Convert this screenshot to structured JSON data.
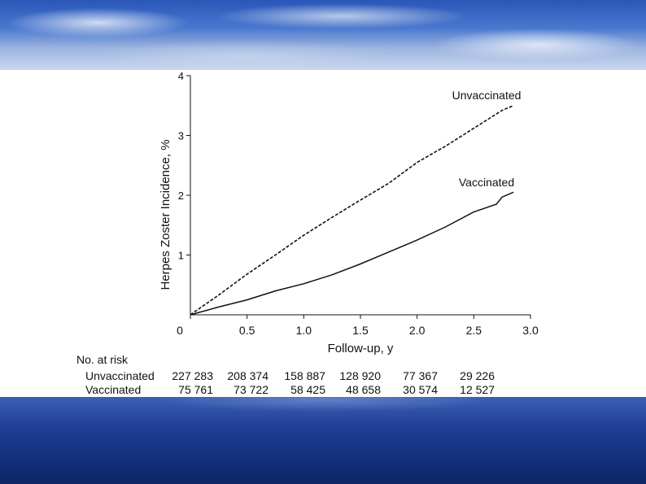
{
  "chart_data": {
    "type": "line",
    "title": "",
    "xlabel": "Follow-up, y",
    "ylabel": "Herpes Zoster Incidence, %",
    "xlim": [
      0,
      3.0
    ],
    "ylim": [
      0,
      4
    ],
    "x_ticks": [
      "0",
      "0.5",
      "1.0",
      "1.5",
      "2.0",
      "2.5",
      "3.0"
    ],
    "y_ticks": [
      "1",
      "2",
      "3",
      "4"
    ],
    "grid": false,
    "series": [
      {
        "name": "Unvaccinated",
        "style": "dashed",
        "color": "#111111",
        "points": [
          [
            0,
            0
          ],
          [
            0.25,
            0.33
          ],
          [
            0.5,
            0.68
          ],
          [
            0.75,
            1.0
          ],
          [
            1.0,
            1.33
          ],
          [
            1.25,
            1.63
          ],
          [
            1.5,
            1.92
          ],
          [
            1.75,
            2.2
          ],
          [
            2.0,
            2.55
          ],
          [
            2.25,
            2.82
          ],
          [
            2.5,
            3.12
          ],
          [
            2.75,
            3.42
          ],
          [
            2.85,
            3.5
          ]
        ]
      },
      {
        "name": "Vaccinated",
        "style": "solid",
        "color": "#111111",
        "points": [
          [
            0,
            0
          ],
          [
            0.25,
            0.13
          ],
          [
            0.5,
            0.25
          ],
          [
            0.75,
            0.4
          ],
          [
            1.0,
            0.52
          ],
          [
            1.25,
            0.67
          ],
          [
            1.5,
            0.85
          ],
          [
            1.75,
            1.05
          ],
          [
            2.0,
            1.25
          ],
          [
            2.25,
            1.47
          ],
          [
            2.5,
            1.72
          ],
          [
            2.7,
            1.85
          ],
          [
            2.75,
            1.97
          ],
          [
            2.85,
            2.05
          ]
        ]
      }
    ],
    "at_risk": {
      "header": "No. at risk",
      "rows": [
        {
          "label": "Unvaccinated",
          "values": [
            "227 283",
            "208 374",
            "158 887",
            "128 920",
            "77 367",
            "29 226"
          ]
        },
        {
          "label": "Vaccinated",
          "values": [
            "75 761",
            "73 722",
            "58 425",
            "48 658",
            "30 574",
            "12 527"
          ]
        }
      ]
    }
  }
}
